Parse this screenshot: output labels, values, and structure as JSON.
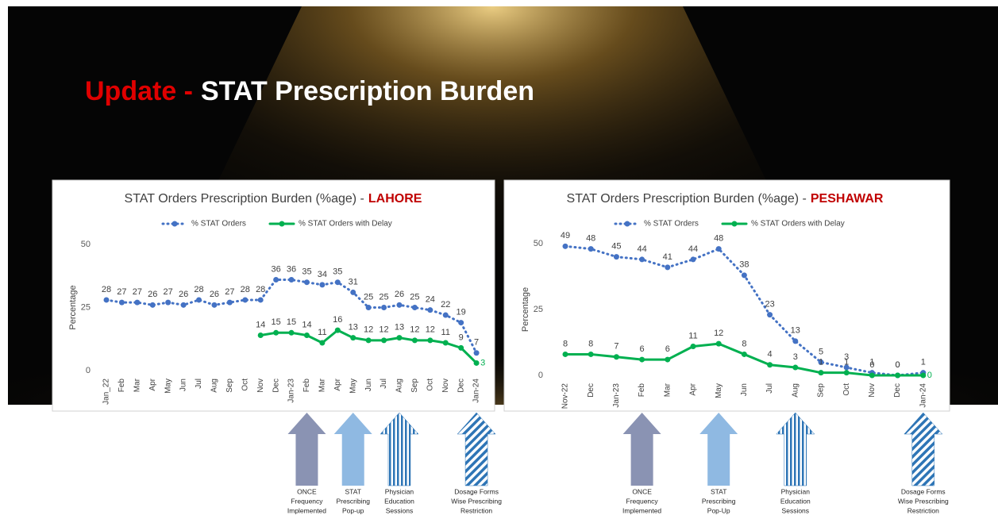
{
  "slide": {
    "title_prefix": "Update -",
    "title": "STAT Prescription Burden"
  },
  "chart_data": [
    {
      "type": "line",
      "title": "STAT Orders Prescription Burden (%age) -",
      "title_highlight": "LAHORE",
      "y_label": "Percentage",
      "categories": [
        "Jan_22",
        "Feb",
        "Mar",
        "Apr",
        "May",
        "Jun",
        "Jul",
        "Aug",
        "Sep",
        "Oct",
        "Nov",
        "Dec",
        "Jan-23",
        "Feb",
        "Mar",
        "Apr",
        "May",
        "Jun",
        "Jul",
        "Aug",
        "Sep",
        "Oct",
        "Nov",
        "Dec",
        "Jan-24"
      ],
      "series": [
        {
          "name": "% STAT Orders",
          "color": "#4472c4",
          "style": "dotted",
          "values": [
            28,
            27,
            27,
            26,
            27,
            26,
            28,
            26,
            27,
            28,
            28,
            36,
            36,
            35,
            34,
            35,
            31,
            25,
            25,
            26,
            25,
            24,
            22,
            19,
            7
          ]
        },
        {
          "name": "% STAT Orders with Delay",
          "color": "#00b050",
          "style": "solid",
          "values": [
            null,
            null,
            null,
            null,
            null,
            null,
            null,
            null,
            null,
            null,
            14,
            15,
            15,
            14,
            11,
            16,
            13,
            12,
            12,
            13,
            12,
            12,
            11,
            9,
            3
          ]
        }
      ],
      "ylim": [
        0,
        50
      ],
      "yticks": [
        0,
        25,
        50
      ],
      "legend": "top",
      "annotations": [
        {
          "lines": [
            "ONCE",
            "Frequency",
            "Implemented"
          ]
        },
        {
          "lines": [
            "STAT",
            "Prescribing",
            "Pop-up"
          ]
        },
        {
          "lines": [
            "Physician",
            "Education",
            "Sessions"
          ]
        },
        {
          "lines": [
            "Dosage Forms",
            "Wise Prescribing",
            "Restriction"
          ]
        }
      ]
    },
    {
      "type": "line",
      "title": "STAT Orders Prescription Burden (%age) -",
      "title_highlight": "PESHAWAR",
      "y_label": "Percentage",
      "categories": [
        "Nov-22",
        "Dec",
        "Jan-23",
        "Feb",
        "Mar",
        "Apr",
        "May",
        "Jun",
        "Jul",
        "Aug",
        "Sep",
        "Oct",
        "Nov",
        "Dec",
        "Jan-24"
      ],
      "series": [
        {
          "name": "% STAT Orders",
          "color": "#4472c4",
          "style": "dotted",
          "values": [
            49,
            48,
            45,
            44,
            41,
            44,
            48,
            38,
            23,
            13,
            5,
            3,
            1,
            0,
            1
          ]
        },
        {
          "name": "% STAT Orders with Delay",
          "color": "#00b050",
          "style": "solid",
          "values": [
            8,
            8,
            7,
            6,
            6,
            11,
            12,
            8,
            4,
            3,
            1,
            1,
            0,
            0,
            0
          ]
        }
      ],
      "ylim": [
        0,
        50
      ],
      "yticks": [
        0,
        25,
        50
      ],
      "legend": "top",
      "annotations": [
        {
          "lines": [
            "ONCE",
            "Frequency",
            "Implemented"
          ]
        },
        {
          "lines": [
            "STAT",
            "Prescribing",
            "Pop-Up"
          ]
        },
        {
          "lines": [
            "Physician",
            "Education",
            "Sessions"
          ]
        },
        {
          "lines": [
            "Dosage Forms",
            "Wise Prescribing",
            "Restriction"
          ]
        }
      ]
    }
  ]
}
